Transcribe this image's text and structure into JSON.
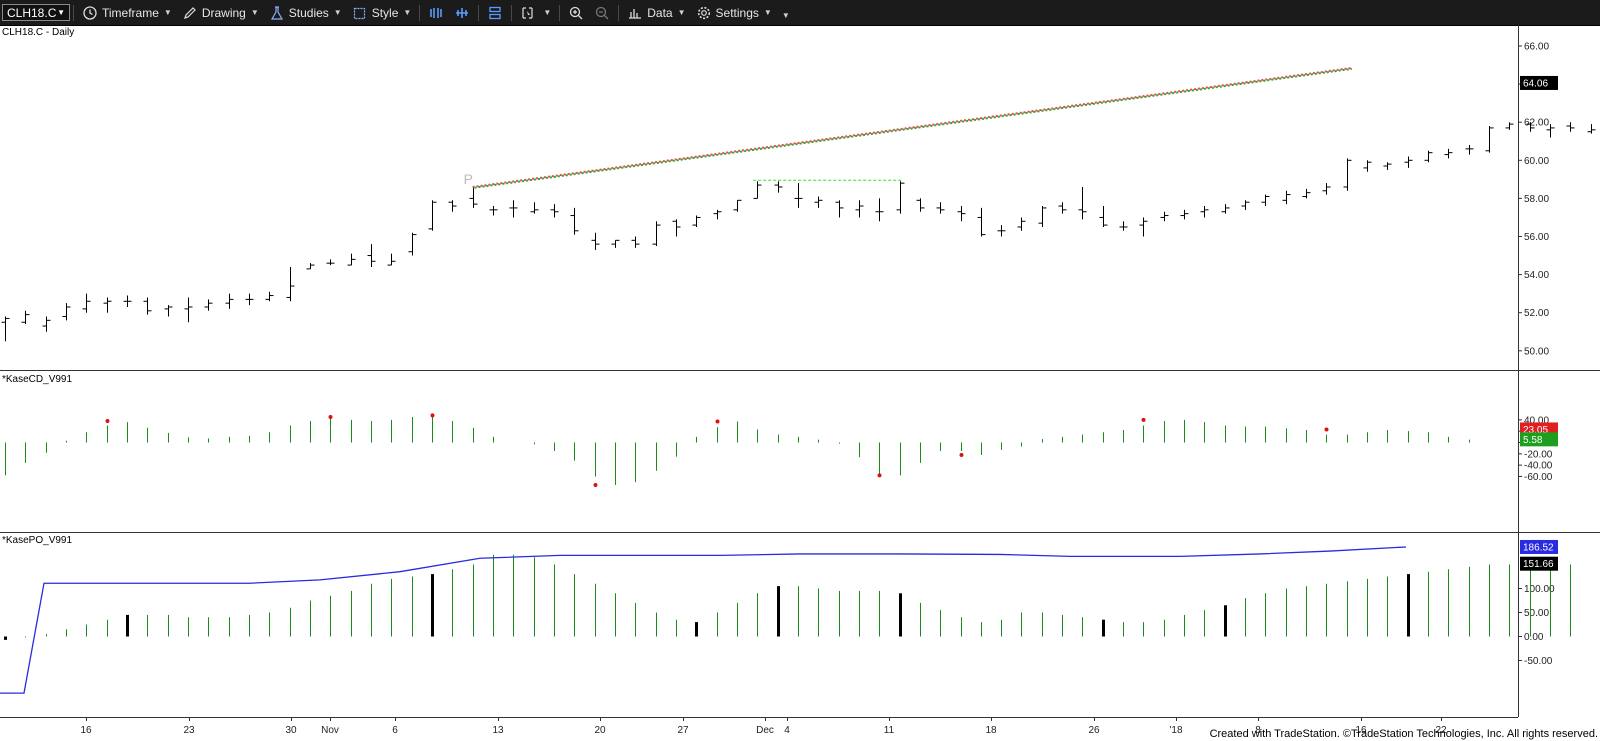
{
  "toolbar": {
    "symbol": "CLH18.C",
    "timeframe": "Timeframe",
    "drawing": "Drawing",
    "studies": "Studies",
    "style": "Style",
    "data": "Data",
    "settings": "Settings"
  },
  "panes": {
    "price_title": "CLH18.C - Daily",
    "cd_title": "*KaseCD_V991",
    "po_title": "*KasePO_V991",
    "pattern_label": "P"
  },
  "footer": "Created with TradeStation. ©TradeStation Technologies, Inc. All rights reserved.",
  "colors": {
    "toolbar_bg": "#1b1b1b",
    "bar": "#000000",
    "hist": "#1a8c1a",
    "pk": "#e01010",
    "line": "#2a2ae0",
    "trend_red": "#e05050",
    "trend_green": "#3aa03a"
  },
  "chart_data": [
    {
      "type": "ohlc",
      "x_tick_labels": [
        "16",
        "23",
        "30",
        "Nov",
        "6",
        "13",
        "20",
        "27",
        "Dec",
        "4",
        "11",
        "18",
        "26",
        "'18",
        "8",
        "16",
        "22"
      ],
      "y_ticks": [
        "66.00",
        "64.00",
        "62.00",
        "60.00",
        "58.00",
        "56.00",
        "54.00",
        "52.00",
        "50.00"
      ],
      "ylim": [
        49,
        67
      ],
      "last_price": "64.06",
      "bars": [
        [
          51.5,
          51.8,
          50.5,
          51.7
        ],
        [
          51.5,
          52.1,
          51.4,
          51.9
        ],
        [
          51.3,
          51.8,
          51.0,
          51.6
        ],
        [
          51.8,
          52.5,
          51.6,
          52.3
        ],
        [
          52.2,
          53.0,
          52.0,
          52.6
        ],
        [
          52.5,
          52.8,
          52.0,
          52.6
        ],
        [
          52.6,
          52.9,
          52.3,
          52.6
        ],
        [
          52.6,
          52.8,
          51.9,
          52.1
        ],
        [
          52.2,
          52.4,
          51.8,
          52.3
        ],
        [
          52.2,
          52.8,
          51.5,
          52.3
        ],
        [
          52.3,
          52.7,
          52.1,
          52.5
        ],
        [
          52.5,
          53.0,
          52.2,
          52.7
        ],
        [
          52.7,
          53.0,
          52.4,
          52.7
        ],
        [
          52.7,
          53.1,
          52.6,
          52.9
        ],
        [
          52.8,
          54.4,
          52.6,
          53.4
        ],
        [
          54.3,
          54.6,
          54.3,
          54.5
        ],
        [
          54.6,
          54.8,
          54.5,
          54.6
        ],
        [
          54.5,
          55.1,
          54.5,
          54.8
        ],
        [
          55.0,
          55.6,
          54.4,
          54.7
        ],
        [
          54.5,
          55.1,
          54.5,
          54.7
        ],
        [
          55.2,
          56.2,
          55.0,
          56.1
        ],
        [
          56.4,
          57.9,
          56.3,
          57.8
        ],
        [
          57.8,
          57.9,
          57.3,
          57.6
        ],
        [
          58.0,
          58.6,
          57.5,
          57.7
        ],
        [
          57.4,
          57.6,
          57.1,
          57.4
        ],
        [
          57.5,
          57.9,
          57.0,
          57.5
        ],
        [
          57.3,
          57.8,
          57.2,
          57.4
        ],
        [
          57.4,
          57.7,
          57.0,
          57.3
        ],
        [
          57.1,
          57.5,
          56.1,
          56.3
        ],
        [
          55.8,
          56.2,
          55.3,
          55.6
        ],
        [
          55.6,
          55.8,
          55.4,
          55.8
        ],
        [
          55.8,
          56.0,
          55.4,
          55.6
        ],
        [
          55.6,
          56.8,
          55.5,
          56.6
        ],
        [
          56.8,
          56.9,
          56.0,
          56.5
        ],
        [
          56.6,
          57.1,
          56.5,
          57.0
        ],
        [
          57.2,
          57.4,
          56.9,
          57.3
        ],
        [
          57.4,
          57.9,
          57.3,
          57.9
        ],
        [
          58.0,
          58.9,
          58.0,
          58.7
        ],
        [
          58.7,
          58.9,
          58.3,
          58.6
        ],
        [
          58.0,
          58.8,
          57.5,
          58.0
        ],
        [
          57.8,
          58.1,
          57.5,
          57.9
        ],
        [
          57.8,
          57.9,
          57.0,
          57.5
        ],
        [
          57.4,
          57.9,
          57.0,
          57.6
        ],
        [
          57.3,
          58.0,
          56.8,
          57.3
        ],
        [
          57.4,
          58.9,
          57.2,
          58.8
        ],
        [
          57.9,
          58.0,
          57.3,
          57.5
        ],
        [
          57.5,
          57.8,
          57.2,
          57.4
        ],
        [
          57.3,
          57.6,
          56.8,
          57.2
        ],
        [
          57.0,
          57.5,
          56.0,
          56.1
        ],
        [
          56.3,
          56.6,
          56.0,
          56.3
        ],
        [
          56.5,
          57.0,
          56.3,
          56.8
        ],
        [
          56.7,
          57.6,
          56.5,
          57.5
        ],
        [
          57.6,
          57.8,
          57.2,
          57.4
        ],
        [
          57.4,
          58.6,
          56.9,
          57.3
        ],
        [
          57.0,
          57.6,
          56.5,
          56.6
        ],
        [
          56.5,
          56.8,
          56.3,
          56.5
        ],
        [
          56.6,
          57.0,
          56.0,
          56.8
        ],
        [
          57.0,
          57.3,
          56.8,
          57.1
        ],
        [
          57.1,
          57.4,
          56.9,
          57.2
        ],
        [
          57.3,
          57.6,
          57.0,
          57.4
        ],
        [
          57.3,
          57.7,
          57.2,
          57.5
        ],
        [
          57.6,
          57.9,
          57.4,
          57.8
        ],
        [
          57.8,
          58.2,
          57.6,
          58.1
        ],
        [
          57.9,
          58.4,
          57.7,
          58.2
        ],
        [
          58.1,
          58.5,
          58.0,
          58.3
        ],
        [
          58.4,
          58.8,
          58.2,
          58.6
        ],
        [
          58.6,
          60.1,
          58.4,
          60.0
        ],
        [
          59.6,
          60.0,
          59.4,
          59.9
        ],
        [
          59.7,
          59.9,
          59.5,
          59.8
        ],
        [
          59.9,
          60.2,
          59.6,
          60.0
        ],
        [
          60.0,
          60.5,
          59.9,
          60.4
        ],
        [
          60.3,
          60.6,
          60.1,
          60.4
        ],
        [
          60.6,
          60.8,
          60.3,
          60.6
        ],
        [
          60.5,
          61.8,
          60.4,
          61.7
        ],
        [
          61.7,
          62.0,
          61.6,
          61.9
        ],
        [
          61.9,
          62.0,
          61.5,
          61.7
        ],
        [
          61.6,
          61.9,
          61.2,
          61.7
        ],
        [
          61.8,
          62.0,
          61.5,
          61.7
        ],
        [
          61.5,
          61.9,
          61.4,
          61.6
        ],
        [
          61.8,
          62.2,
          61.6,
          62.1
        ],
        [
          62.2,
          63.4,
          62.0,
          63.1
        ],
        [
          63.2,
          63.5,
          62.9,
          63.3
        ],
        [
          63.3,
          63.7,
          63.1,
          63.5
        ],
        [
          63.5,
          64.6,
          63.2,
          63.6
        ],
        [
          63.7,
          64.3,
          63.0,
          64.2
        ],
        [
          64.0,
          64.8,
          63.3,
          63.7
        ],
        [
          64.0,
          64.2,
          63.3,
          63.9
        ],
        [
          64.1,
          64.2,
          64.0,
          64.1
        ]
      ]
    },
    {
      "type": "bar",
      "name": "*KaseCD_V991",
      "y_ticks": [
        "40.00",
        "20.00",
        "0.00",
        "-20.00",
        "-40.00",
        "-60.00"
      ],
      "ylim": [
        -75,
        48
      ],
      "last_values": [
        "23.05",
        "5.58"
      ],
      "values": [
        -58,
        -36,
        -18,
        3,
        18,
        30,
        36,
        26,
        17,
        9,
        7,
        10,
        12,
        18,
        30,
        38,
        45,
        40,
        38,
        40,
        45,
        48,
        38,
        26,
        10,
        0,
        -3,
        -15,
        -32,
        -60,
        -75,
        -70,
        -50,
        -25,
        10,
        27,
        37,
        23,
        14,
        10,
        5,
        -2,
        -26,
        -55,
        -58,
        -36,
        -15,
        -15,
        -22,
        -13,
        -7,
        6,
        10,
        14,
        18,
        22,
        30,
        38,
        40,
        36,
        30,
        28,
        28,
        25,
        22,
        14,
        14,
        18,
        22,
        20,
        18,
        10,
        5
      ]
    },
    {
      "type": "bar",
      "name": "*KasePO_V991",
      "y_ticks": [
        "100.00",
        "50.00",
        "0.00",
        "-50.00"
      ],
      "ylim": [
        -80,
        205
      ],
      "last_values": [
        "186.52",
        "151.66"
      ],
      "values": [
        -7,
        -2,
        5,
        15,
        25,
        35,
        45,
        45,
        45,
        40,
        40,
        40,
        45,
        50,
        60,
        75,
        85,
        95,
        110,
        120,
        125,
        130,
        140,
        150,
        170,
        170,
        165,
        150,
        130,
        110,
        90,
        70,
        50,
        35,
        30,
        50,
        70,
        90,
        105,
        105,
        100,
        95,
        95,
        95,
        90,
        70,
        55,
        40,
        30,
        35,
        50,
        50,
        45,
        40,
        35,
        30,
        30,
        35,
        45,
        55,
        65,
        80,
        90,
        100,
        105,
        110,
        115,
        120,
        125,
        130,
        135,
        140,
        145,
        150,
        150,
        148,
        150,
        150
      ]
    }
  ]
}
